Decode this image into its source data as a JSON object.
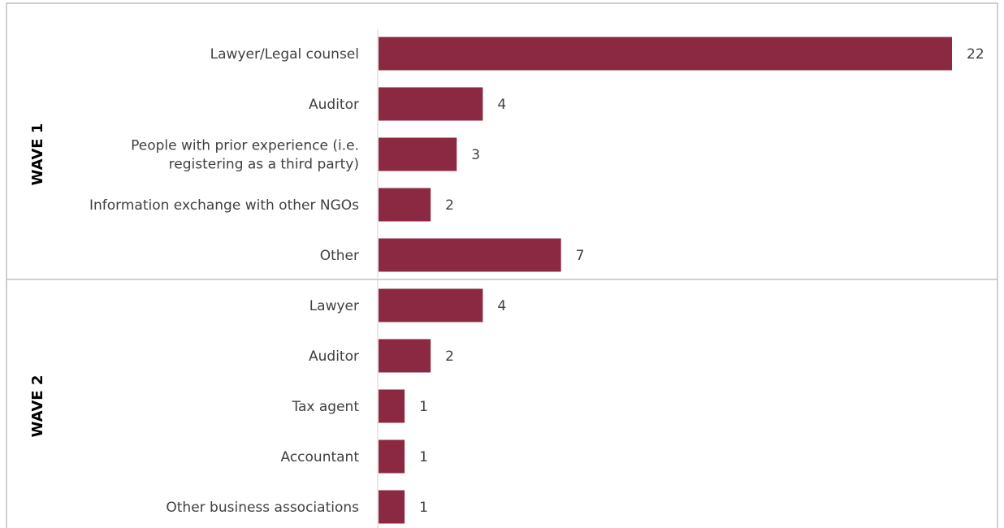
{
  "chart_data": {
    "type": "bar",
    "orientation": "horizontal",
    "title": "",
    "xlabel": "",
    "ylabel": "",
    "xlim": [
      0,
      22
    ],
    "grid": false,
    "legend": "none",
    "bar_color": "#8B2942",
    "groups": [
      {
        "name": "WAVE 1",
        "categories": [
          "Lawyer/Legal counsel",
          "Auditor",
          "People with prior experience (i.e. registering as a third party)",
          "Information exchange with other NGOs",
          "Other"
        ],
        "category_lines": [
          [
            "Lawyer/Legal counsel"
          ],
          [
            "Auditor"
          ],
          [
            "People with prior experience (i.e.",
            "registering as a third party)"
          ],
          [
            "Information exchange with other NGOs"
          ],
          [
            "Other"
          ]
        ],
        "values": [
          22,
          4,
          3,
          2,
          7
        ]
      },
      {
        "name": "WAVE 2",
        "categories": [
          "Lawyer",
          "Auditor",
          "Tax agent",
          "Accountant",
          "Other business associations"
        ],
        "category_lines": [
          [
            "Lawyer"
          ],
          [
            "Auditor"
          ],
          [
            "Tax agent"
          ],
          [
            "Accountant"
          ],
          [
            "Other business associations"
          ]
        ],
        "values": [
          4,
          2,
          1,
          1,
          1
        ]
      }
    ]
  }
}
